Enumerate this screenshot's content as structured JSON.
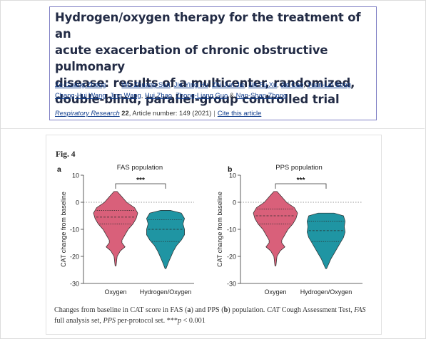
{
  "article": {
    "title_lines": [
      "Hydrogen/oxygen therapy for the treatment of an",
      "acute exacerbation of chronic obstructive pulmonary",
      "disease: results of a multicenter, randomized,",
      "double-blind, parallel-group controlled trial"
    ],
    "authors": [
      "Ze-Guang Zheng",
      "Wu-Zhuang Sun",
      "Jie-Ying Hu",
      "Zhi-Jun Jie",
      "Jin-Fu Xu",
      "Jie Cao",
      "Yuan-Lin Song",
      "Chang-Hui Wang",
      "Jing Wang",
      "Hui Zhao",
      "Zhong-Liang Guo",
      "Nan-Shan Zhong"
    ],
    "last_author_joiner": "&",
    "journal": "Respiratory Research",
    "volume": "22",
    "article_info": ", Article number: 149 (2021)",
    "cite_link": "Cite this article"
  },
  "figure": {
    "label": "Fig. 4",
    "caption": {
      "part1": "Changes from baseline in CAT score in FAS (",
      "a": "a",
      "part2": ") and PPS (",
      "b": "b",
      "part3": ") population. ",
      "cat": "CAT",
      "cat_def": " Cough Assessment Test, ",
      "fas": "FAS",
      "fas_def": " full analysis set, ",
      "pps": "PPS",
      "pps_def": " per-protocol set. ***",
      "p": "p",
      "p_val": " < 0.001"
    }
  },
  "colors": {
    "oxygen": "#d9607a",
    "hydrogen_oxygen": "#1f95a3",
    "link": "#0f3c8c",
    "title": "#222b45"
  },
  "chart_data": [
    {
      "panel": "a",
      "type": "violin",
      "title": "FAS population",
      "ylabel": "CAT change from baseline",
      "ylim": [
        -30,
        10
      ],
      "yticks": [
        10,
        0,
        -10,
        -20,
        -30
      ],
      "reference_line": 0,
      "categories": [
        "Oxygen",
        "Hydrogen/Oxygen"
      ],
      "significance": "***",
      "series": [
        {
          "name": "Oxygen",
          "min": -23.5,
          "max": 4,
          "q1": -8,
          "median": -5.5,
          "q3": -3,
          "profile": [
            [
              4,
              1
            ],
            [
              2,
              4
            ],
            [
              0,
              7
            ],
            [
              -2,
              12
            ],
            [
              -4,
              14
            ],
            [
              -6,
              13
            ],
            [
              -8,
              11
            ],
            [
              -10,
              8
            ],
            [
              -12,
              6
            ],
            [
              -14,
              4
            ],
            [
              -15,
              4
            ],
            [
              -16.5,
              6
            ],
            [
              -18,
              3
            ],
            [
              -20,
              1
            ],
            [
              -23.5,
              0.3
            ]
          ]
        },
        {
          "name": "Hydrogen/Oxygen",
          "min": -24.5,
          "max": -3,
          "q1": -14.5,
          "median": -10,
          "q3": -6.5,
          "profile": [
            [
              -3,
              3
            ],
            [
              -4,
              10
            ],
            [
              -6,
              12
            ],
            [
              -8,
              11
            ],
            [
              -10,
              12
            ],
            [
              -12,
              12
            ],
            [
              -14,
              10
            ],
            [
              -16,
              7
            ],
            [
              -18,
              5
            ],
            [
              -20,
              3.5
            ],
            [
              -22,
              2
            ],
            [
              -24.5,
              0.3
            ]
          ]
        }
      ]
    },
    {
      "panel": "b",
      "type": "violin",
      "title": "PPS population",
      "ylabel": "CAT change from baseline",
      "ylim": [
        -30,
        10
      ],
      "yticks": [
        10,
        0,
        -10,
        -20,
        -30
      ],
      "reference_line": 0,
      "categories": [
        "Oxygen",
        "Hydrogen/Oxygen"
      ],
      "significance": "***",
      "series": [
        {
          "name": "Oxygen",
          "min": -23.5,
          "max": 4,
          "q1": -8,
          "median": -5,
          "q3": -2.5,
          "profile": [
            [
              4,
              1
            ],
            [
              2,
              4
            ],
            [
              0,
              7
            ],
            [
              -2,
              12
            ],
            [
              -4,
              14
            ],
            [
              -6,
              13
            ],
            [
              -8,
              11
            ],
            [
              -10,
              8
            ],
            [
              -12,
              6
            ],
            [
              -14,
              4
            ],
            [
              -15,
              4
            ],
            [
              -16.5,
              6
            ],
            [
              -18,
              3
            ],
            [
              -20,
              1
            ],
            [
              -23.5,
              0.3
            ]
          ]
        },
        {
          "name": "Hydrogen/Oxygen",
          "min": -24.5,
          "max": -4,
          "q1": -14.5,
          "median": -10.5,
          "q3": -7,
          "profile": [
            [
              -4,
              5
            ],
            [
              -5,
              11
            ],
            [
              -7,
              12
            ],
            [
              -9,
              11.5
            ],
            [
              -11,
              12
            ],
            [
              -13,
              11
            ],
            [
              -15,
              9
            ],
            [
              -17,
              7
            ],
            [
              -19,
              5
            ],
            [
              -21,
              3
            ],
            [
              -23,
              1.5
            ],
            [
              -24.5,
              0.3
            ]
          ]
        }
      ]
    }
  ]
}
